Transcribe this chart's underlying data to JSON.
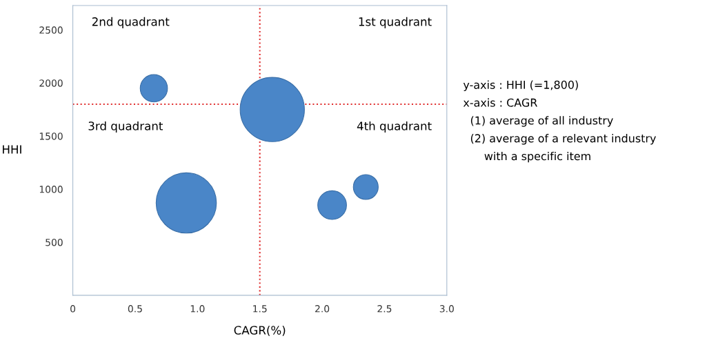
{
  "chart_data": {
    "type": "bubble",
    "xlabel": "CAGR(%)",
    "ylabel": "HHI",
    "x": [
      0.65,
      1.6,
      0.91,
      2.08,
      2.35
    ],
    "values": [
      1950,
      1750,
      870,
      850,
      1020
    ],
    "sizes": [
      0.18,
      1,
      0.88,
      0.2,
      0.15
    ],
    "color": "#4a86c8",
    "xlim": [
      0,
      3.0
    ],
    "xticks": [
      0,
      0.5,
      {
        "value": 1,
        "label": "1.0"
      },
      1.5,
      {
        "value": 2,
        "label": "2.0"
      },
      2.5,
      {
        "value": 3,
        "label": "3.0"
      }
    ],
    "ylim": [
      0,
      2730
    ],
    "yticks": [
      500,
      1000,
      1500,
      2000,
      2500
    ],
    "grid": false,
    "legend": false,
    "ref_lines": [
      {
        "axis": "x",
        "value": 1.5,
        "color": "#e03030",
        "line_style": "dotted"
      },
      {
        "axis": "y",
        "value": 1800,
        "color": "#e03030",
        "line_style": "dotted"
      }
    ],
    "annotations": [
      "2nd quadrant",
      "1st quadrant",
      "3rd quadrant",
      "4th quadrant",
      "y-axis : HHI (=1,800)",
      "x-axis : CAGR",
      "  (1) average of all industry",
      "  (2) average of a relevant industry",
      "      with a specific item"
    ]
  }
}
